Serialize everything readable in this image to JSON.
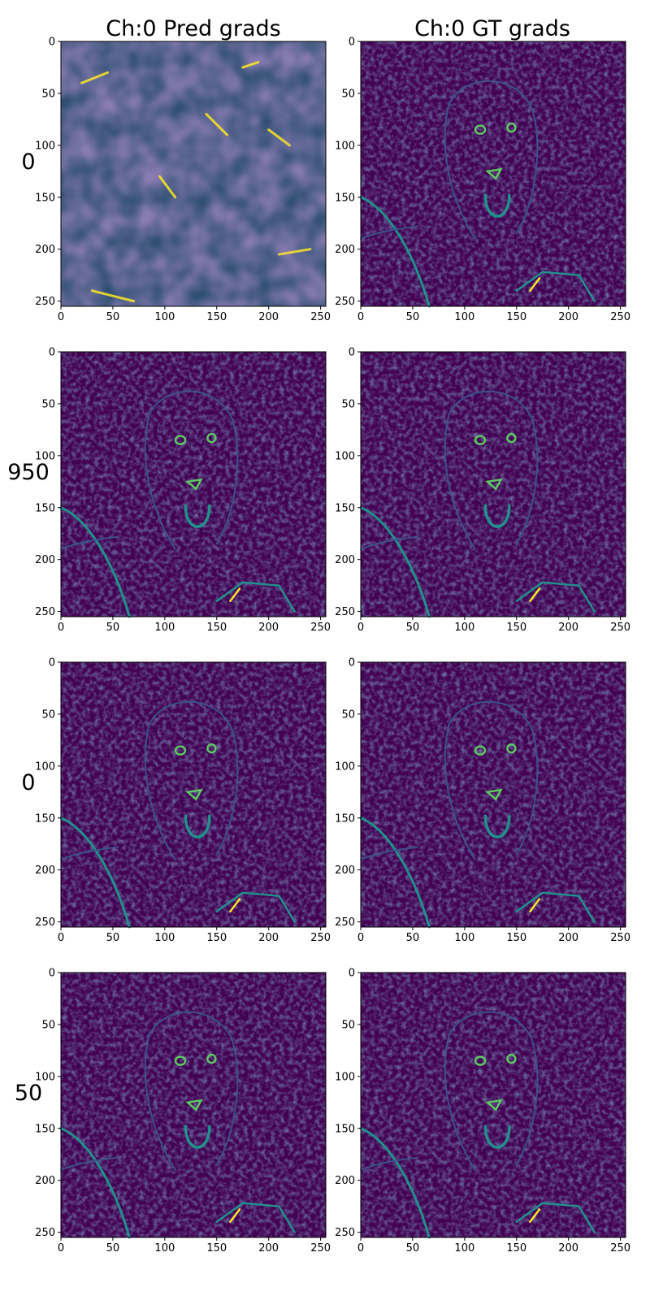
{
  "figure": {
    "column_titles": [
      "Ch:0 Pred grads",
      "Ch:0 GT grads"
    ],
    "row_labels": [
      "0",
      "950",
      "0",
      "50"
    ]
  },
  "colors": {
    "viridis_dark": "#440154",
    "viridis_mid": "#3b528b",
    "viridis_teal": "#21918c",
    "viridis_green": "#5ec962",
    "viridis_yellow": "#fde725"
  },
  "chart_data": {
    "type": "heatmap",
    "colormap": "viridis",
    "rows": 4,
    "cols": 2,
    "xlim": [
      0,
      255
    ],
    "ylim": [
      255,
      0
    ],
    "xticks": [
      0,
      50,
      100,
      150,
      200,
      250
    ],
    "yticks": [
      0,
      50,
      100,
      150,
      200,
      250
    ],
    "panels": [
      {
        "row_label": "0",
        "column": "Ch:0 Pred grads",
        "content": "noise"
      },
      {
        "row_label": "0",
        "column": "Ch:0 GT grads",
        "content": "lion-edges"
      },
      {
        "row_label": "950",
        "column": "Ch:0 Pred grads",
        "content": "lion-edges"
      },
      {
        "row_label": "950",
        "column": "Ch:0 GT grads",
        "content": "lion-edges"
      },
      {
        "row_label": "0",
        "column": "Ch:0 Pred grads",
        "content": "lion-edges"
      },
      {
        "row_label": "0",
        "column": "Ch:0 GT grads",
        "content": "lion-edges"
      },
      {
        "row_label": "50",
        "column": "Ch:0 Pred grads",
        "content": "lion-edges"
      },
      {
        "row_label": "50",
        "column": "Ch:0 GT grads",
        "content": "lion-edges"
      }
    ]
  }
}
